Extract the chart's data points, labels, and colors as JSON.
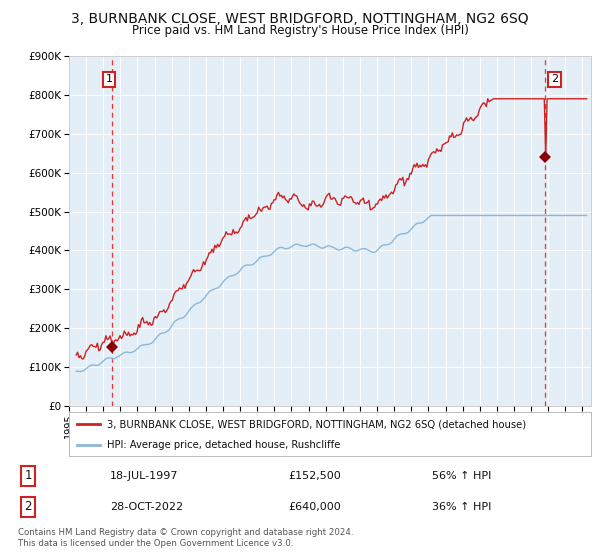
{
  "title": "3, BURNBANK CLOSE, WEST BRIDGFORD, NOTTINGHAM, NG2 6SQ",
  "subtitle": "Price paid vs. HM Land Registry's House Price Index (HPI)",
  "title_fontsize": 10,
  "subtitle_fontsize": 8.5,
  "x_start_year": 1995.3,
  "x_end_year": 2025.5,
  "y_min": 0,
  "y_max": 900000,
  "y_ticks": [
    0,
    100000,
    200000,
    300000,
    400000,
    500000,
    600000,
    700000,
    800000,
    900000
  ],
  "y_tick_labels": [
    "£0",
    "£100K",
    "£200K",
    "£300K",
    "£400K",
    "£500K",
    "£600K",
    "£700K",
    "£800K",
    "£900K"
  ],
  "sale1_year": 1997.54,
  "sale1_price": 152500,
  "sale1_label": "1",
  "sale2_year": 2022.83,
  "sale2_price": 640000,
  "sale2_label": "2",
  "hpi_line_color": "#8BB8D8",
  "price_line_color": "#CC2222",
  "marker_color": "#8B0000",
  "vline_color": "#EE3333",
  "background_color": "#E4EEF7",
  "grid_color": "#FFFFFF",
  "legend_label_red": "3, BURNBANK CLOSE, WEST BRIDGFORD, NOTTINGHAM, NG2 6SQ (detached house)",
  "legend_label_blue": "HPI: Average price, detached house, Rushcliffe",
  "footnote": "Contains HM Land Registry data © Crown copyright and database right 2024.\nThis data is licensed under the Open Government Licence v3.0.",
  "table_row1": [
    "1",
    "18-JUL-1997",
    "£152,500",
    "56% ↑ HPI"
  ],
  "table_row2": [
    "2",
    "28-OCT-2022",
    "£640,000",
    "36% ↑ HPI"
  ]
}
